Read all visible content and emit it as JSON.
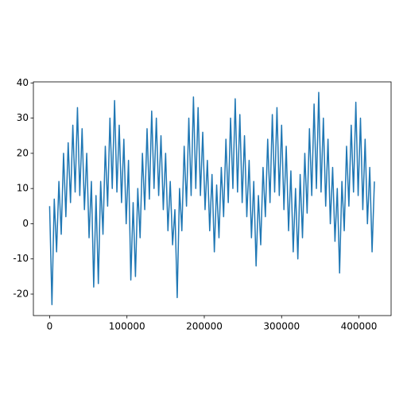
{
  "chart_data": {
    "type": "line",
    "x": [
      0,
      3000,
      6000,
      9000,
      12000,
      15000,
      18000,
      21000,
      24000,
      27000,
      30000,
      33000,
      36000,
      39000,
      42000,
      45000,
      48000,
      51000,
      54000,
      57000,
      60000,
      63000,
      66000,
      69000,
      72000,
      75000,
      78000,
      81000,
      84000,
      87000,
      90000,
      93000,
      96000,
      99000,
      102000,
      105000,
      108000,
      111000,
      114000,
      117000,
      120000,
      123000,
      126000,
      129000,
      132000,
      135000,
      138000,
      141000,
      144000,
      147000,
      150000,
      153000,
      156000,
      159000,
      162000,
      165000,
      168000,
      171000,
      174000,
      177000,
      180000,
      183000,
      186000,
      189000,
      192000,
      195000,
      198000,
      201000,
      204000,
      207000,
      210000,
      213000,
      216000,
      219000,
      222000,
      225000,
      228000,
      231000,
      234000,
      237000,
      240000,
      243000,
      246000,
      249000,
      252000,
      255000,
      258000,
      261000,
      264000,
      267000,
      270000,
      273000,
      276000,
      279000,
      282000,
      285000,
      288000,
      291000,
      294000,
      297000,
      300000,
      303000,
      306000,
      309000,
      312000,
      315000,
      318000,
      321000,
      324000,
      327000,
      330000,
      333000,
      336000,
      339000,
      342000,
      345000,
      348000,
      351000,
      354000,
      357000,
      360000,
      363000,
      366000,
      369000,
      372000,
      375000,
      378000,
      381000,
      384000,
      387000,
      390000,
      393000,
      396000,
      399000,
      402000,
      405000,
      408000,
      411000,
      414000,
      417000,
      420000
    ],
    "values": [
      5,
      -23,
      7,
      -8,
      12,
      -3,
      20,
      2,
      23,
      6,
      28,
      9,
      33,
      8,
      27,
      4,
      20,
      -4,
      12,
      -18,
      8,
      -17,
      12,
      -3,
      22,
      5,
      30,
      10,
      35,
      9,
      28,
      6,
      24,
      0,
      18,
      -16,
      6,
      -15,
      10,
      -4,
      20,
      4,
      27,
      7,
      32,
      10,
      30,
      8,
      25,
      4,
      20,
      -2,
      12,
      -6,
      4,
      -21,
      10,
      -2,
      22,
      5,
      30,
      8,
      36,
      10,
      33,
      8,
      26,
      4,
      18,
      -2,
      14,
      -8,
      11,
      -4,
      16,
      2,
      24,
      6,
      30,
      10,
      35.5,
      9,
      31,
      6,
      25,
      2,
      18,
      -4,
      12,
      -12,
      8,
      -6,
      16,
      2,
      24,
      6,
      31,
      9,
      33,
      8,
      28,
      4,
      22,
      -2,
      15,
      -8,
      10,
      -10,
      14,
      -4,
      20,
      3,
      27,
      8,
      34,
      10,
      37.3,
      9,
      30,
      5,
      24,
      0,
      16,
      -5,
      10,
      -14,
      12,
      -2,
      22,
      5,
      28,
      9,
      34.5,
      8,
      30,
      4,
      24,
      0,
      16,
      -8,
      12
    ],
    "color": "#1f77b4",
    "xlim": [
      -21000,
      441600
    ],
    "xticks": [
      0,
      100000,
      200000,
      300000,
      400000
    ],
    "ylim": [
      -26.1,
      40.3
    ],
    "yticks": [
      -20,
      -10,
      0,
      10,
      20,
      30,
      40
    ]
  }
}
